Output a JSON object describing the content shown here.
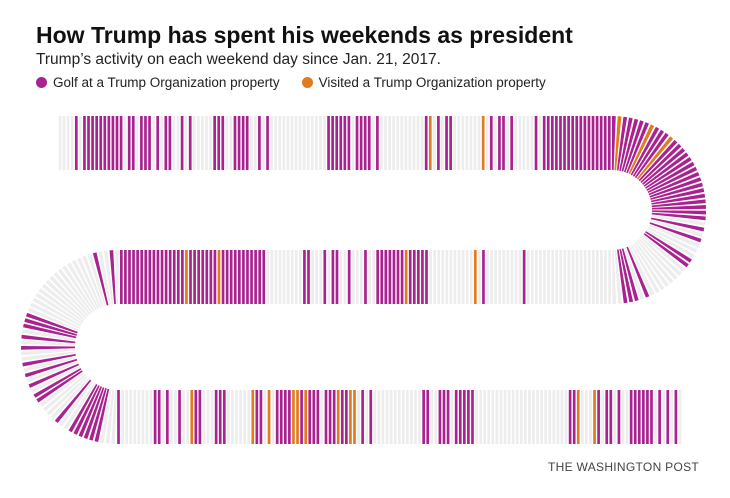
{
  "header": {
    "title": "How Trump has spent his weekends as president",
    "subtitle": "Trump’s activity on each weekend day since Jan. 21, 2017."
  },
  "legend": {
    "items": [
      {
        "label": "Golf at a Trump Organization property",
        "color": "#a8238f"
      },
      {
        "label": "Visited a Trump Organization property",
        "color": "#e07b22"
      }
    ]
  },
  "colors": {
    "golf": "#a8238f",
    "visit": "#e07b22",
    "none": "#ededed"
  },
  "source": "THE WASHINGTON POST",
  "chart_data": {
    "type": "bar",
    "series": [
      {
        "name": "Golf at a Trump Organization property",
        "code": 1
      },
      {
        "name": "Visited a Trump Organization property",
        "code": 2
      }
    ],
    "legend_position": "top-left",
    "weekend_days": "0000101111111111011011101011001010000011100111100101000000000000001111110111101000000000001201011000000020101101000001011111111111111111121111121112111111111111111101010001100000000101110000000000000000000000010000000001020000000000011111211111110010001001101000110000000001111111111121111111211111111111111110100100000000000000001110101001010101100001001111110001000000001101001002110001110000002110201111221211101112112201010000000000001100111011111000000000000000000000001120002101101001111110101010"
  }
}
